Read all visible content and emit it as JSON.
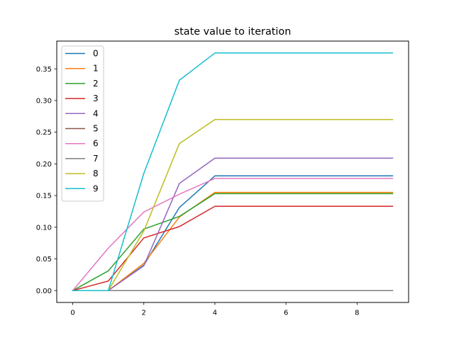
{
  "chart_data": {
    "type": "line",
    "title": "state value to iteration",
    "xlabel": "",
    "ylabel": "",
    "xlim": [
      -0.45,
      9.45
    ],
    "ylim": [
      -0.0188,
      0.3938
    ],
    "xticks": [
      0,
      2,
      4,
      6,
      8
    ],
    "xtick_labels": [
      "0",
      "2",
      "4",
      "6",
      "8"
    ],
    "yticks": [
      0.0,
      0.05,
      0.1,
      0.15,
      0.2,
      0.25,
      0.3,
      0.35
    ],
    "ytick_labels": [
      "0.00",
      "0.05",
      "0.10",
      "0.15",
      "0.20",
      "0.25",
      "0.30",
      "0.35"
    ],
    "grid": false,
    "legend_position": "upper-left",
    "x": [
      0,
      1,
      2,
      3,
      4,
      5,
      6,
      7,
      8,
      9
    ],
    "series": [
      {
        "name": "0",
        "color": "#1f77b4",
        "values": [
          0,
          0,
          0.04,
          0.131,
          0.181,
          0.181,
          0.181,
          0.181,
          0.181,
          0.181
        ]
      },
      {
        "name": "1",
        "color": "#ff7f0e",
        "values": [
          0,
          0,
          0.043,
          0.116,
          0.155,
          0.155,
          0.155,
          0.155,
          0.155,
          0.155
        ]
      },
      {
        "name": "2",
        "color": "#2ca02c",
        "values": [
          0,
          0.031,
          0.097,
          0.117,
          0.153,
          0.153,
          0.153,
          0.153,
          0.153,
          0.153
        ]
      },
      {
        "name": "3",
        "color": "#d62728",
        "values": [
          0,
          0.015,
          0.083,
          0.101,
          0.133,
          0.133,
          0.133,
          0.133,
          0.133,
          0.133
        ]
      },
      {
        "name": "4",
        "color": "#9467bd",
        "values": [
          0,
          0,
          0.039,
          0.169,
          0.209,
          0.209,
          0.209,
          0.209,
          0.209,
          0.209
        ]
      },
      {
        "name": "5",
        "color": "#8c564b",
        "values": [
          0,
          0,
          0,
          0,
          0,
          0,
          0,
          0,
          0,
          0
        ]
      },
      {
        "name": "6",
        "color": "#e377c2",
        "values": [
          0,
          0.067,
          0.124,
          0.152,
          0.177,
          0.177,
          0.177,
          0.177,
          0.177,
          0.177
        ]
      },
      {
        "name": "7",
        "color": "#7f7f7f",
        "values": [
          0,
          0,
          0,
          0,
          0,
          0,
          0,
          0,
          0,
          0
        ]
      },
      {
        "name": "8",
        "color": "#bcbd22",
        "values": [
          0,
          0,
          0.094,
          0.232,
          0.27,
          0.27,
          0.27,
          0.27,
          0.27,
          0.27
        ]
      },
      {
        "name": "9",
        "color": "#17becf",
        "values": [
          0,
          0,
          0.185,
          0.332,
          0.375,
          0.375,
          0.375,
          0.375,
          0.375,
          0.375
        ]
      }
    ]
  }
}
